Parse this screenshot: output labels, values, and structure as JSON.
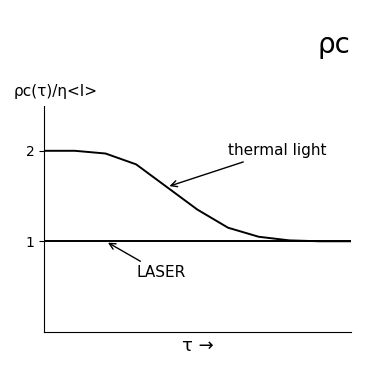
{
  "chart_data": {
    "type": "line",
    "title": "ρc",
    "x_label": "τ →",
    "y_label": "ρc(τ)/η<I>",
    "x": [
      0,
      1,
      2,
      3,
      4,
      5,
      6,
      7,
      8,
      9,
      10
    ],
    "series": [
      {
        "name": "thermal light",
        "color": "#000000",
        "values": [
          2.0,
          2.0,
          1.97,
          1.85,
          1.6,
          1.35,
          1.15,
          1.05,
          1.01,
          1.0,
          1.0
        ]
      },
      {
        "name": "LASER",
        "color": "#000000",
        "values": [
          1.0,
          1.0,
          1.0,
          1.0,
          1.0,
          1.0,
          1.0,
          1.0,
          1.0,
          1.0,
          1.0
        ]
      }
    ],
    "xlim": [
      0,
      10
    ],
    "ylim": [
      0,
      2.5
    ],
    "yticks": [
      1,
      2
    ],
    "tick_labels": "y",
    "grid": false
  }
}
